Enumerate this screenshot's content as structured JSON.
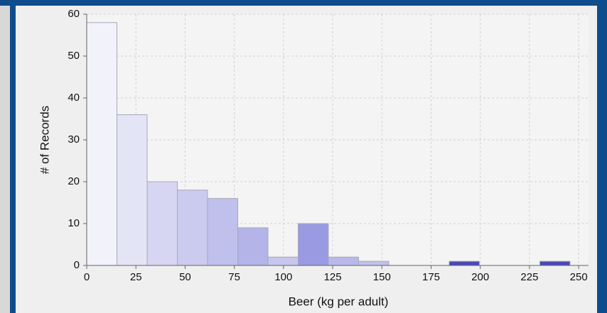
{
  "chart_data": {
    "type": "histogram",
    "x_label": "Beer (kg per adult)",
    "y_label": "# of Records",
    "bins": [
      0,
      15.35,
      30.7,
      46.05,
      61.4,
      76.75,
      92.1,
      107.45,
      122.8,
      138.15,
      153.5,
      168.85,
      184.2,
      199.55,
      214.9,
      230.25,
      245.6
    ],
    "values": [
      58,
      36,
      20,
      18,
      16,
      9,
      2,
      10,
      2,
      1,
      0,
      0,
      1,
      0,
      0,
      1
    ],
    "colors": [
      "#f2f2fb",
      "#e4e4f7",
      "#d6d6f3",
      "#cbcbf0",
      "#c0c0ec",
      "#b4b4e8",
      "#c6c6ee",
      "#9a9ae2",
      "#b8b8ea",
      "#c0c0ec",
      "#c0c0ec",
      "#c0c0ec",
      "#4a4ab8",
      "#c0c0ec",
      "#c0c0ec",
      "#4a4ab8"
    ],
    "xlim": [
      0,
      255
    ],
    "ylim": [
      0,
      60
    ],
    "xticks": [
      0,
      25,
      50,
      75,
      100,
      125,
      150,
      175,
      200,
      225,
      250
    ],
    "yticks": [
      0,
      10,
      20,
      30,
      40,
      50,
      60
    ],
    "grid": true
  }
}
